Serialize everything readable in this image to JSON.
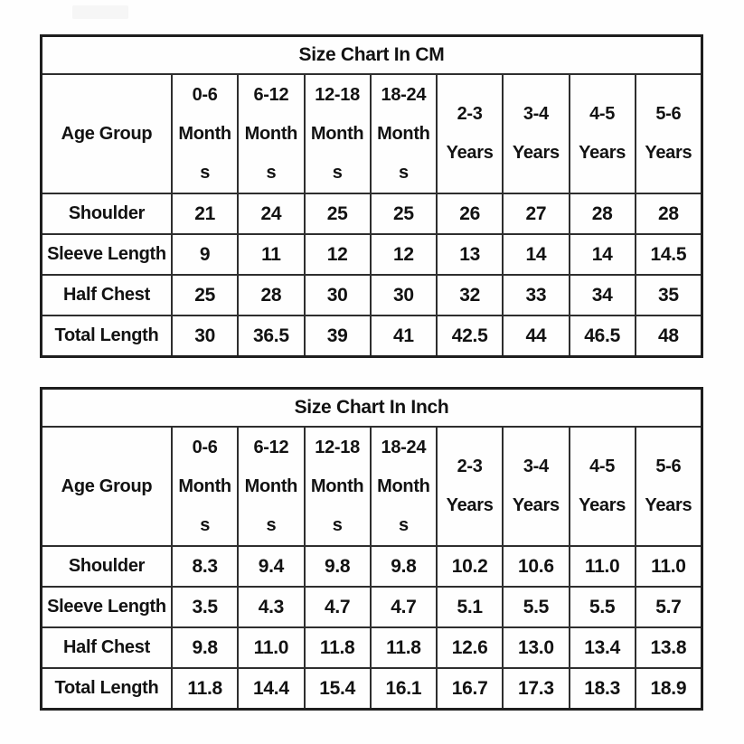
{
  "page": {
    "background": "#fefefe",
    "border_color": "#1e1e1e",
    "text_color": "#121212"
  },
  "top_left_badge": {
    "color": "#f6f6f6"
  },
  "tables": [
    {
      "title": "Size Chart In CM",
      "age_group_label": "Age Group",
      "columns": [
        "0-6\nMonth\ns",
        "6-12\nMonth\ns",
        "12-18\nMonth\ns",
        "18-24\nMonth\ns",
        "2-3\nYears",
        "3-4\nYears",
        "4-5\nYears",
        "5-6\nYears"
      ],
      "rows": [
        {
          "label": "Shoulder",
          "values": [
            "21",
            "24",
            "25",
            "25",
            "26",
            "27",
            "28",
            "28"
          ]
        },
        {
          "label": "Sleeve Length",
          "values": [
            "9",
            "11",
            "12",
            "12",
            "13",
            "14",
            "14",
            "14.5"
          ]
        },
        {
          "label": "Half Chest",
          "values": [
            "25",
            "28",
            "30",
            "30",
            "32",
            "33",
            "34",
            "35"
          ]
        },
        {
          "label": "Total Length",
          "values": [
            "30",
            "36.5",
            "39",
            "41",
            "42.5",
            "44",
            "46.5",
            "48"
          ]
        }
      ]
    },
    {
      "title": "Size Chart In Inch",
      "age_group_label": "Age Group",
      "columns": [
        "0-6\nMonth\ns",
        "6-12\nMonth\ns",
        "12-18\nMonth\ns",
        "18-24\nMonth\ns",
        "2-3\nYears",
        "3-4\nYears",
        "4-5\nYears",
        "5-6\nYears"
      ],
      "rows": [
        {
          "label": "Shoulder",
          "values": [
            "8.3",
            "9.4",
            "9.8",
            "9.8",
            "10.2",
            "10.6",
            "11.0",
            "11.0"
          ]
        },
        {
          "label": "Sleeve Length",
          "values": [
            "3.5",
            "4.3",
            "4.7",
            "4.7",
            "5.1",
            "5.5",
            "5.5",
            "5.7"
          ]
        },
        {
          "label": "Half Chest",
          "values": [
            "9.8",
            "11.0",
            "11.8",
            "11.8",
            "12.6",
            "13.0",
            "13.4",
            "13.8"
          ]
        },
        {
          "label": "Total Length",
          "values": [
            "11.8",
            "14.4",
            "15.4",
            "16.1",
            "16.7",
            "17.3",
            "18.3",
            "18.9"
          ]
        }
      ]
    }
  ]
}
